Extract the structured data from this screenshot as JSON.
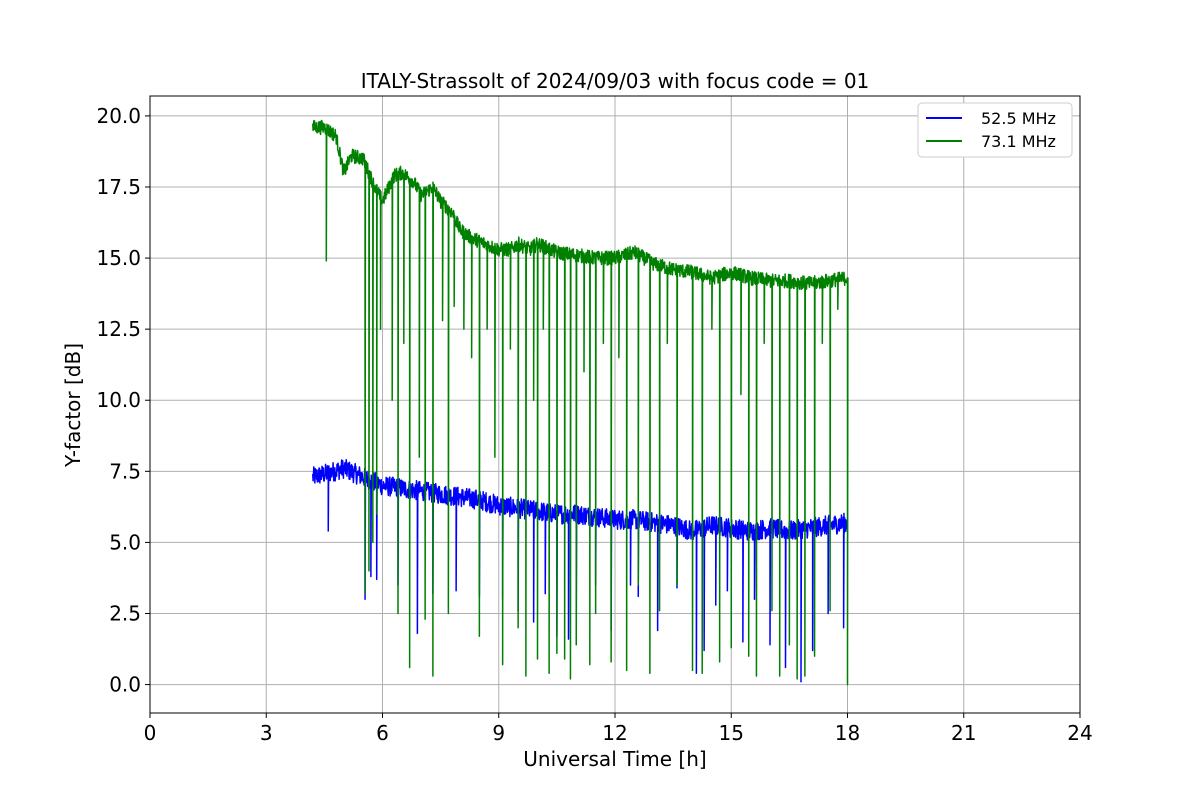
{
  "chart_data": {
    "type": "line",
    "title": "ITALY-Strassolt of 2024/09/03 with focus code = 01",
    "xlabel": "Universal Time [h]",
    "ylabel": "Y-factor [dB]",
    "xlim": [
      0,
      24
    ],
    "ylim": [
      -1.0,
      20.7
    ],
    "xticks": [
      "0",
      "3",
      "6",
      "9",
      "12",
      "15",
      "18",
      "21",
      "24"
    ],
    "yticks": [
      "0.0",
      "2.5",
      "5.0",
      "7.5",
      "10.0",
      "12.5",
      "15.0",
      "17.5",
      "20.0"
    ],
    "grid": true,
    "legend_position": "top-right",
    "legend": [
      "52.5 MHz",
      "73.1 MHz"
    ],
    "series": [
      {
        "name": "52.5 MHz",
        "color": "#0000ff",
        "x": [
          4.2,
          4.5,
          5.0,
          5.5,
          6.0,
          6.5,
          7.0,
          7.5,
          8.0,
          8.5,
          9.0,
          9.5,
          10.0,
          10.5,
          11.0,
          11.5,
          12.0,
          12.5,
          13.0,
          13.5,
          14.0,
          14.5,
          15.0,
          15.5,
          16.0,
          16.5,
          17.0,
          17.5,
          18.0
        ],
        "y": [
          7.3,
          7.4,
          7.6,
          7.3,
          7.0,
          6.9,
          6.8,
          6.7,
          6.6,
          6.5,
          6.3,
          6.2,
          6.1,
          6.0,
          6.0,
          5.9,
          5.8,
          5.8,
          5.7,
          5.6,
          5.4,
          5.6,
          5.5,
          5.4,
          5.5,
          5.4,
          5.5,
          5.6,
          5.7
        ],
        "noise": 0.35,
        "dips": [
          [
            4.6,
            5.4
          ],
          [
            5.55,
            3.0
          ],
          [
            5.7,
            3.8
          ],
          [
            5.85,
            3.7
          ],
          [
            6.4,
            3.5
          ],
          [
            6.9,
            1.8
          ],
          [
            7.3,
            3.2
          ],
          [
            7.9,
            3.3
          ],
          [
            8.5,
            3.1
          ],
          [
            9.1,
            3.0
          ],
          [
            9.5,
            2.6
          ],
          [
            9.9,
            2.2
          ],
          [
            10.2,
            3.2
          ],
          [
            10.5,
            1.7
          ],
          [
            10.8,
            1.6
          ],
          [
            11.0,
            1.9
          ],
          [
            11.5,
            3.5
          ],
          [
            11.9,
            1.9
          ],
          [
            12.4,
            3.5
          ],
          [
            12.6,
            3.1
          ],
          [
            13.1,
            1.9
          ],
          [
            13.6,
            3.4
          ],
          [
            14.1,
            0.4
          ],
          [
            14.3,
            1.2
          ],
          [
            14.6,
            2.8
          ],
          [
            14.9,
            3.3
          ],
          [
            15.3,
            1.5
          ],
          [
            15.6,
            3.0
          ],
          [
            16.0,
            1.4
          ],
          [
            16.4,
            0.6
          ],
          [
            16.8,
            0.1
          ],
          [
            17.1,
            1.2
          ],
          [
            17.5,
            2.5
          ],
          [
            17.9,
            2.0
          ]
        ]
      },
      {
        "name": "73.1 MHz",
        "color": "#008000",
        "x": [
          4.2,
          4.5,
          4.8,
          5.0,
          5.2,
          5.5,
          5.8,
          6.0,
          6.3,
          6.5,
          6.8,
          7.0,
          7.3,
          7.5,
          7.8,
          8.0,
          8.3,
          8.5,
          8.8,
          9.0,
          9.3,
          9.5,
          9.8,
          10.0,
          10.5,
          11.0,
          11.5,
          12.0,
          12.5,
          13.0,
          13.5,
          14.0,
          14.5,
          15.0,
          15.5,
          16.0,
          16.5,
          17.0,
          17.5,
          18.0
        ],
        "y": [
          19.6,
          19.6,
          19.3,
          18.0,
          18.6,
          18.5,
          17.5,
          17.0,
          17.9,
          18.0,
          17.7,
          17.2,
          17.5,
          17.0,
          16.6,
          16.0,
          15.7,
          15.6,
          15.4,
          15.3,
          15.3,
          15.5,
          15.3,
          15.5,
          15.2,
          15.1,
          15.0,
          15.0,
          15.2,
          14.8,
          14.6,
          14.5,
          14.3,
          14.5,
          14.3,
          14.2,
          14.2,
          14.1,
          14.2,
          14.3
        ],
        "noise": 0.25,
        "dips": [
          [
            4.55,
            14.9
          ],
          [
            5.55,
            3.2
          ],
          [
            5.65,
            4.0
          ],
          [
            5.75,
            5.0
          ],
          [
            5.85,
            6.0
          ],
          [
            5.95,
            12.5
          ],
          [
            6.25,
            10.0
          ],
          [
            6.4,
            2.5
          ],
          [
            6.55,
            12.0
          ],
          [
            6.7,
            0.6
          ],
          [
            6.95,
            8.0
          ],
          [
            7.1,
            2.3
          ],
          [
            7.3,
            0.3
          ],
          [
            7.55,
            12.8
          ],
          [
            7.7,
            2.5
          ],
          [
            7.85,
            13.3
          ],
          [
            8.1,
            12.5
          ],
          [
            8.3,
            11.5
          ],
          [
            8.5,
            1.7
          ],
          [
            8.7,
            12.5
          ],
          [
            8.9,
            8.0
          ],
          [
            9.1,
            0.7
          ],
          [
            9.3,
            11.8
          ],
          [
            9.5,
            2.0
          ],
          [
            9.7,
            0.3
          ],
          [
            9.9,
            10.0
          ],
          [
            10.0,
            0.9
          ],
          [
            10.15,
            12.5
          ],
          [
            10.3,
            0.4
          ],
          [
            10.5,
            1.1
          ],
          [
            10.7,
            0.9
          ],
          [
            10.85,
            0.2
          ],
          [
            11.0,
            1.4
          ],
          [
            11.2,
            11.0
          ],
          [
            11.35,
            0.7
          ],
          [
            11.5,
            2.5
          ],
          [
            11.7,
            12.0
          ],
          [
            11.9,
            0.8
          ],
          [
            12.1,
            11.5
          ],
          [
            12.3,
            0.5
          ],
          [
            12.6,
            3.5
          ],
          [
            12.9,
            0.4
          ],
          [
            13.15,
            2.6
          ],
          [
            13.35,
            12.0
          ],
          [
            13.6,
            3.5
          ],
          [
            14.0,
            0.5
          ],
          [
            14.25,
            0.4
          ],
          [
            14.5,
            12.5
          ],
          [
            14.7,
            0.8
          ],
          [
            15.0,
            1.3
          ],
          [
            15.25,
            10.2
          ],
          [
            15.45,
            1.0
          ],
          [
            15.65,
            0.3
          ],
          [
            15.85,
            12.0
          ],
          [
            16.05,
            2.6
          ],
          [
            16.25,
            0.3
          ],
          [
            16.5,
            1.4
          ],
          [
            16.7,
            0.2
          ],
          [
            16.9,
            0.3
          ],
          [
            17.15,
            1.0
          ],
          [
            17.35,
            12.0
          ],
          [
            17.55,
            2.6
          ],
          [
            17.75,
            13.2
          ],
          [
            18.0,
            0.0
          ]
        ]
      }
    ]
  }
}
